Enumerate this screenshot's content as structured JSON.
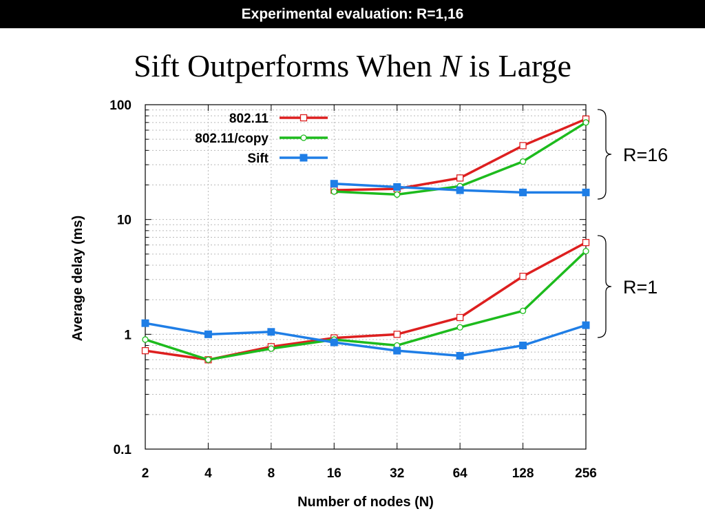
{
  "header": {
    "title": "Experimental evaluation: R=1,16"
  },
  "slide": {
    "title_part1": "Sift Outperforms When ",
    "title_italic": "N",
    "title_part2": " is Large"
  },
  "annotations": {
    "r16": "R=16",
    "r1": "R=1"
  },
  "colors": {
    "red": "#dd1f1f",
    "green": "#1dbb1d",
    "blue": "#1f7ee6"
  },
  "chart_data": {
    "type": "line",
    "xlabel": "Number of nodes (N)",
    "ylabel": "Average delay (ms)",
    "y_scale": "log",
    "ylim": [
      0.1,
      100
    ],
    "x_categories": [
      "2",
      "4",
      "8",
      "16",
      "32",
      "64",
      "128",
      "256"
    ],
    "y_tick_labels": [
      "0.1",
      "1",
      "10",
      "100"
    ],
    "grid": true,
    "legend_position": "top-left",
    "series": [
      {
        "name": "802.11",
        "color": "#dd1f1f",
        "marker": "open-square",
        "group": "R=1",
        "values": [
          0.72,
          0.6,
          0.78,
          0.93,
          1.0,
          1.4,
          3.2,
          6.3
        ]
      },
      {
        "name": "802.11/copy",
        "color": "#1dbb1d",
        "marker": "open-circle",
        "group": "R=1",
        "values": [
          0.9,
          0.6,
          0.75,
          0.9,
          0.8,
          1.15,
          1.6,
          5.3
        ]
      },
      {
        "name": "Sift",
        "color": "#1f7ee6",
        "marker": "filled-square",
        "group": "R=1",
        "values": [
          1.25,
          1.0,
          1.05,
          0.85,
          0.72,
          0.65,
          0.8,
          1.2
        ]
      },
      {
        "name": "802.11",
        "color": "#dd1f1f",
        "marker": "open-square",
        "group": "R=16",
        "x_start_index": 3,
        "values": [
          18,
          18.5,
          23,
          44,
          75
        ]
      },
      {
        "name": "802.11/copy",
        "color": "#1dbb1d",
        "marker": "open-circle",
        "group": "R=16",
        "x_start_index": 3,
        "values": [
          17.5,
          16.5,
          19.5,
          32,
          70
        ]
      },
      {
        "name": "Sift",
        "color": "#1f7ee6",
        "marker": "filled-square",
        "group": "R=16",
        "x_start_index": 3,
        "values": [
          20.5,
          19.2,
          18,
          17.2,
          17.2
        ]
      }
    ],
    "legend": [
      "802.11",
      "802.11/copy",
      "Sift"
    ]
  }
}
